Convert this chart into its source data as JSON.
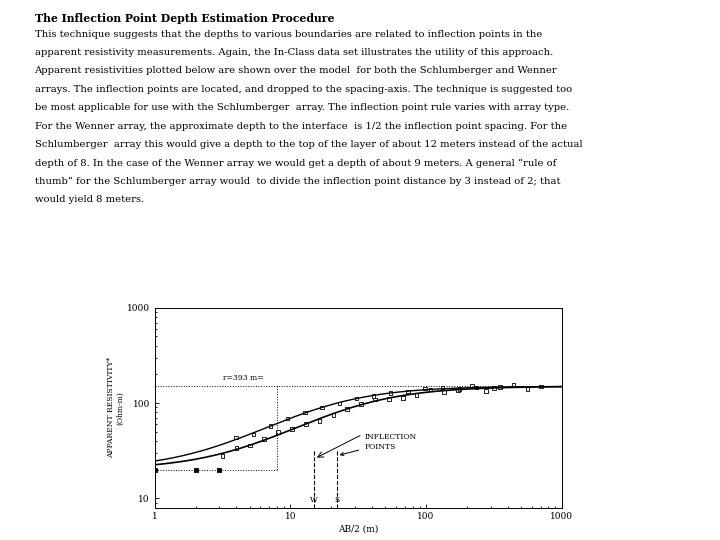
{
  "title": "The Inflection Point Depth Estimation Procedure",
  "body_text": "This technique suggests that the depths to various boundaries are related to inflection points in the apparent resistivity measurements. Again, the In-Class data set illustrates the utility of this approach.\nApparent resistivities plotted below are shown over the model  for both the Schlumberger and Wenner\narrays. The inflection points are located, and dropped to the spacing-axis. The technique is suggested too\nbe most applicable for use with the Schlumberger  array. The inflection point rule varies with array type.\nFor the Wenner array, the approximate depth to the interface  is 1/2 the inflection point spacing. For the\nSchlumberger  array this would give a depth to the top of the layer of about 12 meters instead of the actual\ndepth of 8. In the case of the Wenner array we would get a depth of about 9 meters. A general “rule of\nthumb” for the Schlumberger array would  to divide the inflection point distance by 3 instead of 2; that\nwould yield 8 meters.",
  "ylabel": "APPARENT RESISTIVITY*\n(Ohm-m)",
  "xlabel": "AB/2 (m)",
  "rho1": 20,
  "rho2": 150,
  "background_color": "#ffffff",
  "text_color": "#000000"
}
